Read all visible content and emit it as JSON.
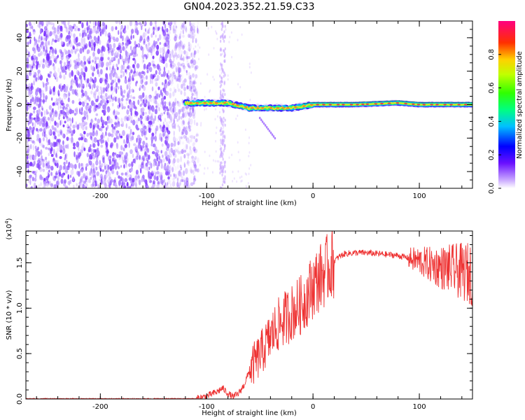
{
  "title": "GN04.2023.352.21.59.C33",
  "colors": {
    "snr_line": "#ee3333",
    "band_core": "#e8e020",
    "band_peak": "#e83050",
    "noise": "#7a30ff"
  },
  "chart_data": [
    {
      "type": "heatmap",
      "name": "spectrogram",
      "xlabel": "Height of straight line (km)",
      "ylabel": "Frequency (Hz)",
      "xlim": [
        -270,
        150
      ],
      "ylim": [
        -50,
        50
      ],
      "x_ticks": [
        "-200",
        "-100",
        "0",
        "100"
      ],
      "y_ticks": [
        "-40",
        "-20",
        "0",
        "20",
        "40"
      ],
      "noise_region_x": [
        -270,
        -118
      ],
      "noise_column_x": -85,
      "signal_band": {
        "x_start": -120,
        "x_end": 150,
        "center_hz": [
          {
            "x": -120,
            "y": 1
          },
          {
            "x": -100,
            "y": 1
          },
          {
            "x": -80,
            "y": 1
          },
          {
            "x": -60,
            "y": -2
          },
          {
            "x": -40,
            "y": -2
          },
          {
            "x": -20,
            "y": -2
          },
          {
            "x": 0,
            "y": 0
          },
          {
            "x": 40,
            "y": 0
          },
          {
            "x": 80,
            "y": 1
          },
          {
            "x": 100,
            "y": 0
          },
          {
            "x": 150,
            "y": 0
          }
        ]
      },
      "colorbar": {
        "label": "Normalized spectral amplitude",
        "range": [
          0,
          1
        ],
        "ticks": [
          "0.0",
          "0.2",
          "0.4",
          "0.6",
          "0.8"
        ]
      }
    },
    {
      "type": "line",
      "name": "snr",
      "xlabel": "Height of straight line (km)",
      "ylabel": "SNR (10 * v/v)",
      "y_multiplier_label": "(x10",
      "y_multiplier_exp": "4",
      "xlim": [
        -270,
        150
      ],
      "ylim": [
        0,
        1.85
      ],
      "x_ticks": [
        "-200",
        "-100",
        "0",
        "100"
      ],
      "y_ticks": [
        "0.0",
        "0.5",
        "1.0",
        "1.5"
      ],
      "series": [
        {
          "x": [
            -270,
            -200,
            -150,
            -110,
            -100,
            -90,
            -85,
            -80,
            -75,
            -70,
            -65,
            -60,
            -55,
            -50,
            -45,
            -40,
            -35,
            -30,
            -25,
            -20,
            -15,
            -10,
            -5,
            0,
            5,
            10,
            15,
            20,
            25,
            30,
            40,
            50,
            60,
            70,
            80,
            90,
            100,
            110,
            120,
            130,
            140,
            150
          ],
          "y": [
            0.0,
            0.0,
            0.0,
            0.0,
            0.03,
            0.08,
            0.12,
            0.06,
            0.02,
            0.06,
            0.15,
            0.3,
            0.4,
            0.48,
            0.58,
            0.68,
            0.78,
            0.85,
            0.9,
            0.95,
            1.0,
            1.05,
            1.15,
            1.25,
            1.32,
            1.38,
            1.45,
            1.52,
            1.57,
            1.6,
            1.61,
            1.61,
            1.6,
            1.59,
            1.58,
            1.55,
            1.52,
            1.48,
            1.45,
            1.43,
            1.4,
            1.38
          ]
        }
      ]
    }
  ]
}
